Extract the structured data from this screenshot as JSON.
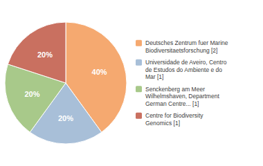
{
  "chart_data": {
    "type": "pie",
    "categories": [
      "Deutsches Zentrum fuer Marine\nBiodiversitaetsforschung [2]",
      "Universidade de Aveiro, Centro\nde Estudos do Ambiente e do\nMar [1]",
      "Senckenberg am Meer\nWilhelmshaven, Department\nGerman Centre... [1]",
      "Centre for Biodiversity\nGenomics [1]"
    ],
    "values": [
      40,
      20,
      20,
      20
    ],
    "value_labels": [
      "40%",
      "20%",
      "20%",
      "20%"
    ],
    "data_labels": true,
    "colors": [
      "#F5A970",
      "#A8BFD8",
      "#A8C98A",
      "#C97060"
    ],
    "legend": "right"
  }
}
